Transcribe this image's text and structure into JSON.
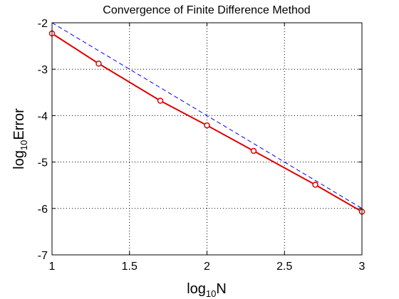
{
  "chart_data": {
    "type": "line",
    "title": "Convergence of Finite Difference Method",
    "xlabel": {
      "base": "log",
      "sub": "10",
      "rest": "N"
    },
    "ylabel": {
      "base": "log",
      "sub": "10",
      "rest": "Error"
    },
    "xlim": [
      1,
      3
    ],
    "ylim": [
      -7,
      -2
    ],
    "x_ticks": [
      1,
      1.5,
      2,
      2.5,
      3
    ],
    "y_ticks": [
      -7,
      -6,
      -5,
      -4,
      -3,
      -2
    ],
    "x_tick_labels": [
      "1",
      "1.5",
      "2",
      "2.5",
      "3"
    ],
    "y_tick_labels": [
      "-7",
      "-6",
      "-5",
      "-4",
      "-3",
      "-2"
    ],
    "grid": true,
    "series": [
      {
        "style": "solid line with circle markers",
        "color": "#e00000",
        "x": [
          1.0,
          1.301,
          1.699,
          2.0,
          2.301,
          2.699,
          3.0
        ],
        "y": [
          -2.23,
          -2.88,
          -3.68,
          -4.21,
          -4.76,
          -5.49,
          -6.07
        ]
      },
      {
        "style": "dashed line",
        "color": "#0000ff",
        "x": [
          1.0,
          3.0
        ],
        "y": [
          -2.0,
          -6.0
        ]
      }
    ]
  }
}
